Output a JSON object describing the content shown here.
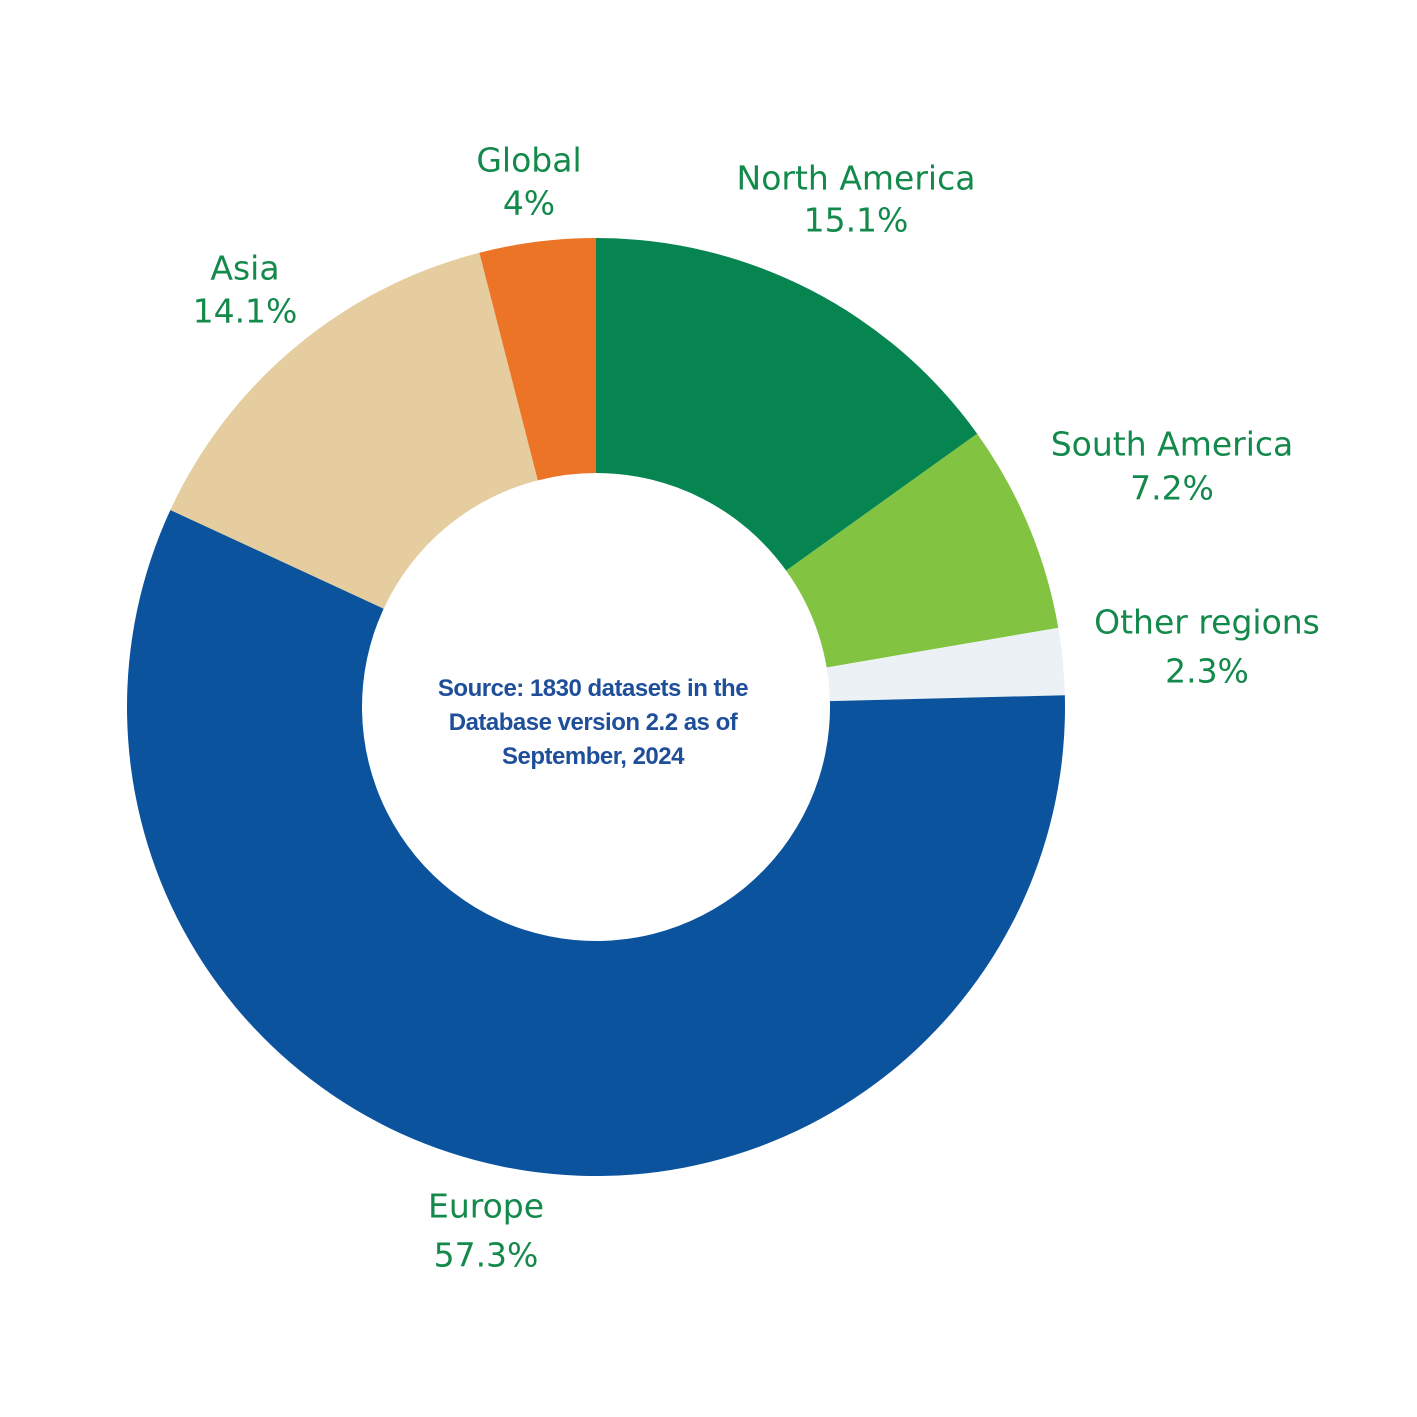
{
  "chart_data": {
    "type": "pie",
    "variant": "donut",
    "center_note": "Source: 1830 datasets in the Database version 2.2 as of September, 2024",
    "slices": [
      {
        "label": "North America",
        "value": 15.1,
        "value_label": "15.1%",
        "color": "#078550"
      },
      {
        "label": "South America",
        "value": 7.2,
        "value_label": "7.2%",
        "color": "#82c341"
      },
      {
        "label": "Other regions",
        "value": 2.3,
        "value_label": "2.3%",
        "color": "#ebf1f4"
      },
      {
        "label": "Europe",
        "value": 57.3,
        "value_label": "57.3%",
        "color": "#0c539e"
      },
      {
        "label": "Asia",
        "value": 14.1,
        "value_label": "14.1%",
        "color": "#e5cd9f"
      },
      {
        "label": "Global",
        "value": 4,
        "value_label": "4%",
        "color": "#ec7426"
      }
    ],
    "label_color": "#138a4b"
  }
}
